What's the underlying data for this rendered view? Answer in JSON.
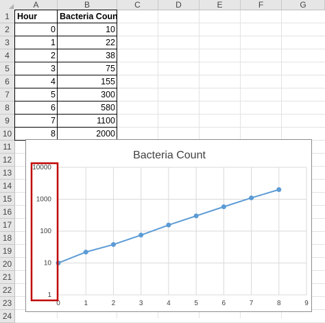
{
  "columns": [
    "A",
    "B",
    "C",
    "D",
    "E",
    "F",
    "G"
  ],
  "rows": [
    "1",
    "2",
    "3",
    "4",
    "5",
    "6",
    "7",
    "8",
    "9",
    "10",
    "11",
    "12",
    "13",
    "14",
    "15",
    "16",
    "17",
    "18",
    "19",
    "20",
    "21",
    "22",
    "23",
    "24"
  ],
  "table": {
    "headers": [
      "Hour",
      "Bacteria Count"
    ],
    "rows": [
      [
        "0",
        "10"
      ],
      [
        "1",
        "22"
      ],
      [
        "2",
        "38"
      ],
      [
        "3",
        "75"
      ],
      [
        "4",
        "155"
      ],
      [
        "5",
        "300"
      ],
      [
        "6",
        "580"
      ],
      [
        "7",
        "1100"
      ],
      [
        "8",
        "2000"
      ]
    ]
  },
  "chart_data": {
    "type": "scatter",
    "title": "Bacteria Count",
    "x": [
      0,
      1,
      2,
      3,
      4,
      5,
      6,
      7,
      8
    ],
    "y": [
      10,
      22,
      38,
      75,
      155,
      300,
      580,
      1100,
      2000
    ],
    "xlim": [
      0,
      9
    ],
    "ylim": [
      1,
      10000
    ],
    "yscale": "log",
    "xticks": [
      "0",
      "1",
      "2",
      "3",
      "4",
      "5",
      "6",
      "7",
      "8",
      "9"
    ],
    "yticks": [
      "1",
      "10",
      "100",
      "1000",
      "10000"
    ],
    "grid": true,
    "line_color": "#5b9bd5",
    "highlight_color": "#c00000"
  }
}
